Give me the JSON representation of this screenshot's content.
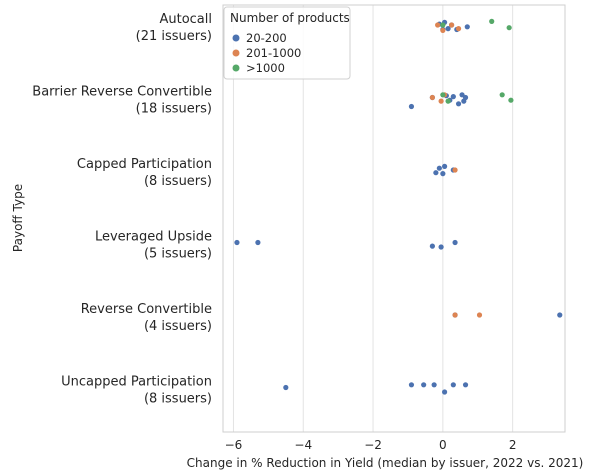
{
  "chart_data": {
    "type": "scatter",
    "title": "",
    "xlabel": "Change in % Reduction in Yield (median by issuer, 2022 vs. 2021)",
    "ylabel": "Payoff Type",
    "xlim": [
      -6.3,
      3.5
    ],
    "xticks": [
      -6,
      -4,
      -2,
      0,
      2
    ],
    "xtick_labels": [
      "−6",
      "−4",
      "−2",
      "0",
      "2"
    ],
    "grid": "vertical",
    "legend": {
      "title": "Number of products",
      "placement": "top-left",
      "entries": [
        {
          "label": "20-200",
          "color": "#4c72b0"
        },
        {
          "label": "201-1000",
          "color": "#dd8452"
        },
        {
          "label": ">1000",
          "color": "#55a868"
        }
      ]
    },
    "categories": [
      {
        "line1": "Autocall",
        "line2": "(21 issuers)"
      },
      {
        "line1": "Barrier Reverse Convertible",
        "line2": "(18 issuers)"
      },
      {
        "line1": "Capped Participation",
        "line2": "(8 issuers)"
      },
      {
        "line1": "Leveraged Upside",
        "line2": "(5 issuers)"
      },
      {
        "line1": "Reverse Convertible",
        "line2": "(4 issuers)"
      },
      {
        "line1": "Uncapped Participation",
        "line2": "(8 issuers)"
      }
    ],
    "series": [
      {
        "group": "20-200",
        "color": "#4c72b0",
        "points": [
          {
            "cat": 0,
            "x": -0.1,
            "y": -0.01
          },
          {
            "cat": 0,
            "x": 0.0,
            "y": 0.05
          },
          {
            "cat": 0,
            "x": 0.05,
            "y": -0.03
          },
          {
            "cat": 0,
            "x": 0.15,
            "y": 0.04
          },
          {
            "cat": 0,
            "x": 0.25,
            "y": 0.0
          },
          {
            "cat": 0,
            "x": 0.4,
            "y": 0.05
          },
          {
            "cat": 0,
            "x": 0.7,
            "y": 0.02
          },
          {
            "cat": 1,
            "x": -0.9,
            "y": 0.1
          },
          {
            "cat": 1,
            "x": -0.3,
            "y": 0.0
          },
          {
            "cat": 1,
            "x": 0.1,
            "y": -0.02
          },
          {
            "cat": 1,
            "x": 0.2,
            "y": 0.03
          },
          {
            "cat": 1,
            "x": 0.3,
            "y": -0.01
          },
          {
            "cat": 1,
            "x": 0.45,
            "y": 0.07
          },
          {
            "cat": 1,
            "x": 0.55,
            "y": -0.03
          },
          {
            "cat": 1,
            "x": 0.6,
            "y": 0.04
          },
          {
            "cat": 1,
            "x": 0.65,
            "y": 0.0
          },
          {
            "cat": 2,
            "x": -0.2,
            "y": 0.03
          },
          {
            "cat": 2,
            "x": -0.1,
            "y": -0.02
          },
          {
            "cat": 2,
            "x": 0.0,
            "y": 0.04
          },
          {
            "cat": 2,
            "x": 0.05,
            "y": -0.04
          },
          {
            "cat": 2,
            "x": 0.3,
            "y": 0.0
          },
          {
            "cat": 3,
            "x": -5.9,
            "y": 0.0
          },
          {
            "cat": 3,
            "x": -5.3,
            "y": 0.0
          },
          {
            "cat": 3,
            "x": -0.3,
            "y": 0.04
          },
          {
            "cat": 3,
            "x": -0.05,
            "y": 0.05
          },
          {
            "cat": 3,
            "x": 0.35,
            "y": 0.0
          },
          {
            "cat": 4,
            "x": 0.35,
            "y": 0.0
          },
          {
            "cat": 4,
            "x": 3.35,
            "y": 0.0
          },
          {
            "cat": 5,
            "x": -4.5,
            "y": 0.0
          },
          {
            "cat": 5,
            "x": -0.9,
            "y": -0.03
          },
          {
            "cat": 5,
            "x": -0.55,
            "y": -0.03
          },
          {
            "cat": 5,
            "x": -0.25,
            "y": -0.03
          },
          {
            "cat": 5,
            "x": 0.05,
            "y": 0.05
          },
          {
            "cat": 5,
            "x": 0.3,
            "y": -0.03
          },
          {
            "cat": 5,
            "x": 0.65,
            "y": -0.03
          }
        ]
      },
      {
        "group": "201-1000",
        "color": "#dd8452",
        "points": [
          {
            "cat": 0,
            "x": -0.15,
            "y": 0.0
          },
          {
            "cat": 0,
            "x": 0.0,
            "y": 0.06
          },
          {
            "cat": 0,
            "x": 0.25,
            "y": 0.0
          },
          {
            "cat": 0,
            "x": 0.45,
            "y": 0.04
          },
          {
            "cat": 1,
            "x": -0.3,
            "y": 0.0
          },
          {
            "cat": 1,
            "x": -0.05,
            "y": 0.04
          },
          {
            "cat": 1,
            "x": 0.05,
            "y": -0.03
          },
          {
            "cat": 2,
            "x": 0.35,
            "y": 0.0
          },
          {
            "cat": 4,
            "x": 0.35,
            "y": 0.0
          },
          {
            "cat": 4,
            "x": 1.05,
            "y": 0.0
          }
        ]
      },
      {
        "group": ">1000",
        "color": "#55a868",
        "points": [
          {
            "cat": 0,
            "x": 0.0,
            "y": 0.0
          },
          {
            "cat": 0,
            "x": 1.4,
            "y": -0.04
          },
          {
            "cat": 0,
            "x": 1.9,
            "y": 0.03
          },
          {
            "cat": 1,
            "x": 0.0,
            "y": -0.03
          },
          {
            "cat": 1,
            "x": 0.15,
            "y": 0.04
          },
          {
            "cat": 1,
            "x": 1.7,
            "y": -0.03
          },
          {
            "cat": 1,
            "x": 1.95,
            "y": 0.03
          }
        ]
      }
    ]
  }
}
